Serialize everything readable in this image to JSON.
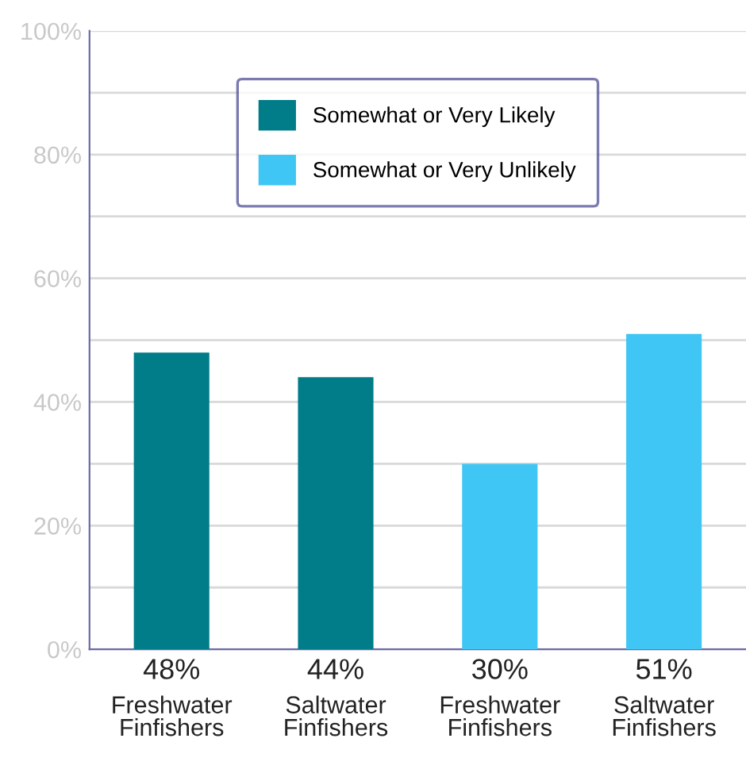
{
  "chart_data": {
    "type": "bar",
    "categories": [
      "Freshwater Finfishers",
      "Saltwater Finfishers",
      "Freshwater Finfishers",
      "Saltwater Finfishers"
    ],
    "series": [
      {
        "name": "Somewhat or Very Likely",
        "color": "#007d88",
        "values": [
          48,
          44,
          null,
          null
        ],
        "value_labels": [
          "48%",
          "44%",
          null,
          null
        ]
      },
      {
        "name": "Somewhat or Very Unlikely",
        "color": "#40c6f4",
        "values": [
          null,
          null,
          30,
          51
        ],
        "value_labels": [
          null,
          null,
          "30%",
          "51%"
        ]
      }
    ],
    "ylim": [
      0,
      100
    ],
    "yticks": [
      {
        "value": 0,
        "label": "0%"
      },
      {
        "value": 10,
        "label": null
      },
      {
        "value": 20,
        "label": "20%"
      },
      {
        "value": 30,
        "label": null
      },
      {
        "value": 40,
        "label": "40%"
      },
      {
        "value": 50,
        "label": null
      },
      {
        "value": 60,
        "label": "60%"
      },
      {
        "value": 70,
        "label": null
      },
      {
        "value": 80,
        "label": "80%"
      },
      {
        "value": 90,
        "label": null
      },
      {
        "value": 100,
        "label": "100%"
      }
    ],
    "grid": "y",
    "legend": "top"
  }
}
